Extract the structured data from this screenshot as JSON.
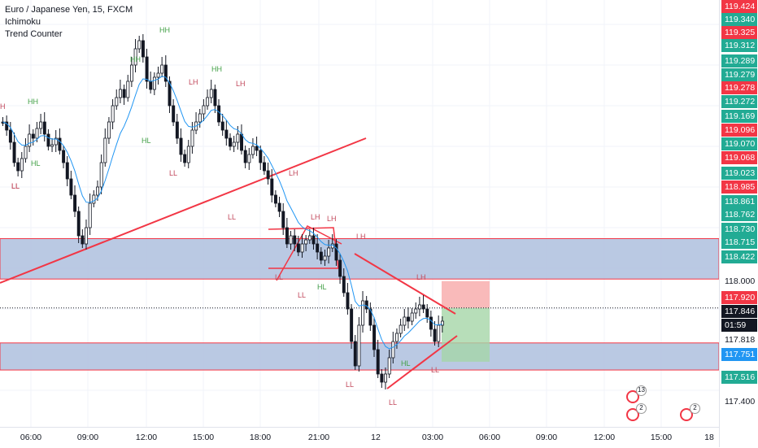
{
  "legend": {
    "title": "Euro / Japanese Yen, 15, FXCM",
    "indicators": [
      "Ichimoku",
      "Trend Counter"
    ]
  },
  "colors": {
    "up": "#131722",
    "down": "#131722",
    "red_label": "#f23645",
    "green_label": "#22ab94",
    "blue_label": "#2196f3",
    "zone_fill": "#b2c3e0",
    "trend_line": "#f23645",
    "ichimoku_line": "#2196f3"
  },
  "price_axis": {
    "labels": [
      {
        "text": "119.424",
        "style": "red"
      },
      {
        "text": "119.340",
        "style": "green"
      },
      {
        "text": "119.325",
        "style": "red"
      },
      {
        "text": "119.312",
        "style": "green"
      },
      {
        "text": "119.289",
        "style": "green"
      },
      {
        "text": "119.279",
        "style": "green"
      },
      {
        "text": "119.278",
        "style": "red"
      },
      {
        "text": "119.272",
        "style": "green"
      },
      {
        "text": "119.169",
        "style": "green"
      },
      {
        "text": "119.096",
        "style": "red"
      },
      {
        "text": "119.070",
        "style": "green"
      },
      {
        "text": "119.068",
        "style": "red"
      },
      {
        "text": "119.023",
        "style": "green"
      },
      {
        "text": "118.985",
        "style": "red"
      },
      {
        "text": "118.861",
        "style": "green"
      },
      {
        "text": "118.762",
        "style": "green"
      },
      {
        "text": "118.730",
        "style": "green"
      },
      {
        "text": "118.715",
        "style": "green"
      },
      {
        "text": "118.422",
        "style": "green"
      },
      {
        "text": "118.000",
        "style": "plain"
      },
      {
        "text": "117.920",
        "style": "red"
      },
      {
        "text": "117.846",
        "style": "dark"
      },
      {
        "text": "01:59",
        "style": "dark"
      },
      {
        "text": "117.818",
        "style": "plain"
      },
      {
        "text": "117.751",
        "style": "blue"
      },
      {
        "text": "117.516",
        "style": "green"
      },
      {
        "text": "117.400",
        "style": "plain"
      }
    ]
  },
  "time_axis": [
    "06:00",
    "09:00",
    "12:00",
    "15:00",
    "18:00",
    "21:00",
    "12",
    "03:00",
    "06:00",
    "09:00",
    "12:00",
    "15:00",
    "18"
  ],
  "markers": [
    {
      "text": "H",
      "color": "red"
    },
    {
      "text": "HH",
      "color": "green"
    },
    {
      "text": "HL",
      "color": "green"
    },
    {
      "text": "LL",
      "color": "red"
    },
    {
      "text": "HH",
      "color": "green"
    },
    {
      "text": "HH",
      "color": "green"
    },
    {
      "text": "HL",
      "color": "green"
    },
    {
      "text": "LH",
      "color": "red"
    },
    {
      "text": "HH",
      "color": "green"
    },
    {
      "text": "LH",
      "color": "red"
    },
    {
      "text": "LL",
      "color": "red"
    },
    {
      "text": "LL",
      "color": "red"
    },
    {
      "text": "LL",
      "color": "red"
    },
    {
      "text": "LH",
      "color": "red"
    },
    {
      "text": "LH",
      "color": "red"
    },
    {
      "text": "LH",
      "color": "red"
    },
    {
      "text": "LL",
      "color": "red"
    },
    {
      "text": "HL",
      "color": "green"
    },
    {
      "text": "LL",
      "color": "red"
    },
    {
      "text": "LH",
      "color": "red"
    },
    {
      "text": "LL",
      "color": "red"
    },
    {
      "text": "LH",
      "color": "red"
    },
    {
      "text": "LL",
      "color": "red"
    },
    {
      "text": "LL",
      "color": "red"
    },
    {
      "text": "HL",
      "color": "green"
    }
  ],
  "events": [
    {
      "count": "13"
    },
    {
      "count": "2"
    },
    {
      "count": "2"
    }
  ],
  "chart_data": {
    "type": "candlestick",
    "title": "Euro / Japanese Yen, 15, FXCM",
    "ylim": [
      117.3,
      119.45
    ],
    "current_price": 117.846,
    "countdown": "01:59",
    "zones": [
      {
        "from": 118.0,
        "to": 118.215
      },
      {
        "from": 117.516,
        "to": 117.66
      }
    ],
    "position": {
      "entry": 117.846,
      "stop": 117.92,
      "target": 117.56
    }
  }
}
